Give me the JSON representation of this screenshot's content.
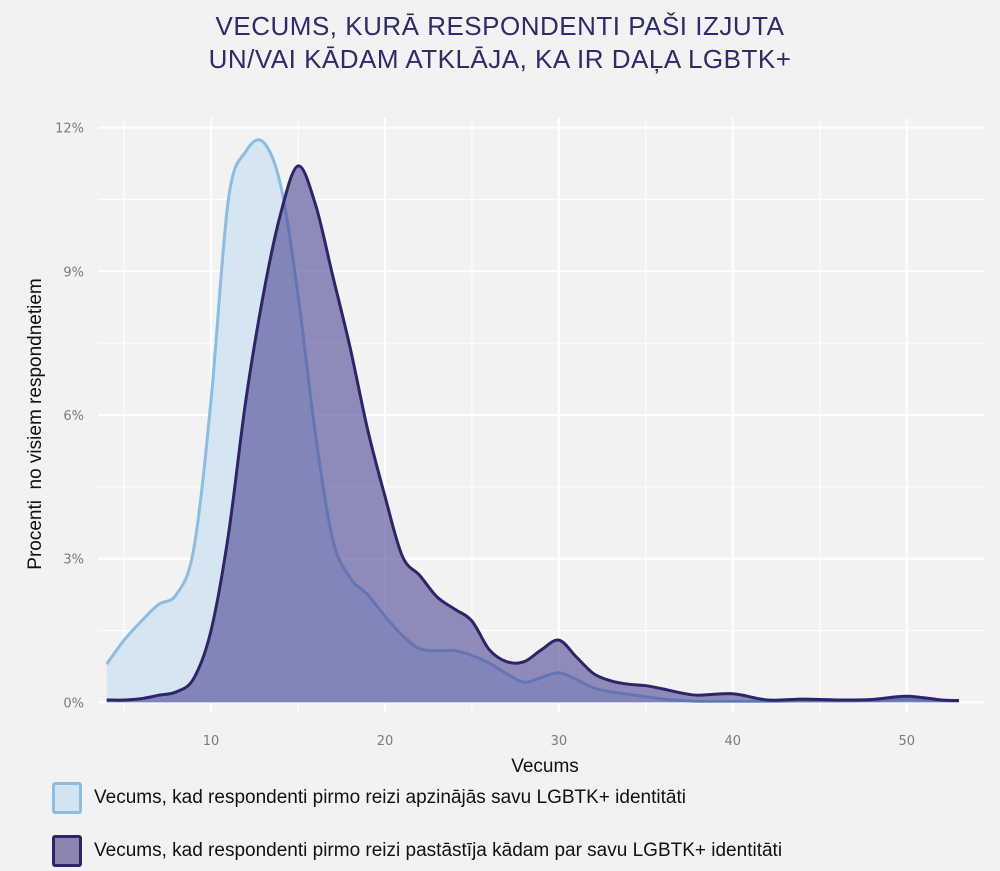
{
  "title": {
    "line1": "VECUMS, KURĀ RESPONDENTI PAŠI IZJUTA",
    "line2": "UN/VAI KĀDAM ATKLĀJA, KA IR DAĻA LGBTK+"
  },
  "colors": {
    "background": "#f2f2f2",
    "grid": "#ffffff",
    "title": "#2e2a6b",
    "series1_fill": "#d3e4f0",
    "series1_line": "#8bbde3",
    "series2_fill": "#4b4592",
    "series2_line": "#2d2568"
  },
  "legend": {
    "items": [
      {
        "label": "Vecums, kad respondenti pirmo reizi apzinājās savu LGBTK+ identitāti"
      },
      {
        "label": "Vecums, kad respondenti pirmo reizi pastāstīja kādam par savu LGBTK+ identitāti"
      }
    ]
  },
  "chart_data": {
    "type": "area",
    "title": "VECUMS, KURĀ RESPONDENTI PAŠI IZJUTA UN/VAI KĀDAM ATKLĀJA, KA IR DAĻA LGBTK+",
    "xlabel": "Vecums",
    "ylabel": "Procenti  no visiem respondnetiem",
    "xlim": [
      3.5,
      54.5
    ],
    "ylim": [
      -0.2,
      12.2
    ],
    "x_ticks": [
      10,
      20,
      30,
      40,
      50
    ],
    "x_tick_labels": [
      "10",
      "20",
      "30",
      "40",
      "50"
    ],
    "y_ticks": [
      0,
      3,
      6,
      9,
      12
    ],
    "y_tick_labels": [
      "0%",
      "3%",
      "6%",
      "9%",
      "12%"
    ],
    "grid": true,
    "legend_position": "bottom",
    "series": [
      {
        "name": "Vecums, kad respondenti pirmo reizi apzinājās savu LGBTK+ identitāti",
        "x": [
          4,
          5,
          6,
          7,
          8,
          9,
          10,
          11,
          12,
          13,
          14,
          15,
          16,
          17,
          18,
          19,
          20,
          21,
          22,
          23,
          24,
          25,
          26,
          27,
          28,
          29,
          30,
          31,
          32,
          33,
          34,
          35,
          36,
          37,
          38,
          40,
          42,
          44,
          46,
          48,
          50,
          52,
          53
        ],
        "values": [
          0.8,
          1.3,
          1.7,
          2.05,
          2.25,
          3.2,
          6.3,
          10.5,
          11.5,
          11.7,
          10.8,
          8.5,
          5.6,
          3.4,
          2.6,
          2.25,
          1.8,
          1.4,
          1.12,
          1.08,
          1.08,
          0.98,
          0.82,
          0.6,
          0.42,
          0.52,
          0.62,
          0.48,
          0.3,
          0.22,
          0.17,
          0.12,
          0.07,
          0.04,
          0.02,
          0.02,
          0.02,
          0.03,
          0.03,
          0.04,
          0.06,
          0.04,
          0.03
        ]
      },
      {
        "name": "Vecums, kad respondenti pirmo reizi pastāstīja kādam par savu LGBTK+ identitāti",
        "x": [
          4,
          5,
          6,
          7,
          8,
          9,
          10,
          11,
          12,
          13,
          14,
          15,
          16,
          17,
          18,
          19,
          20,
          21,
          22,
          23,
          24,
          25,
          26,
          27,
          28,
          29,
          30,
          31,
          32,
          33,
          34,
          35,
          36,
          37,
          38,
          40,
          42,
          44,
          46,
          48,
          50,
          52,
          53
        ],
        "values": [
          0.05,
          0.05,
          0.08,
          0.15,
          0.22,
          0.5,
          1.5,
          3.5,
          6.3,
          8.5,
          10.2,
          11.2,
          10.4,
          8.9,
          7.4,
          5.7,
          4.3,
          3.05,
          2.65,
          2.2,
          1.95,
          1.7,
          1.1,
          0.85,
          0.85,
          1.1,
          1.3,
          0.95,
          0.6,
          0.45,
          0.38,
          0.35,
          0.28,
          0.2,
          0.15,
          0.18,
          0.05,
          0.07,
          0.05,
          0.06,
          0.13,
          0.05,
          0.04
        ]
      }
    ]
  }
}
